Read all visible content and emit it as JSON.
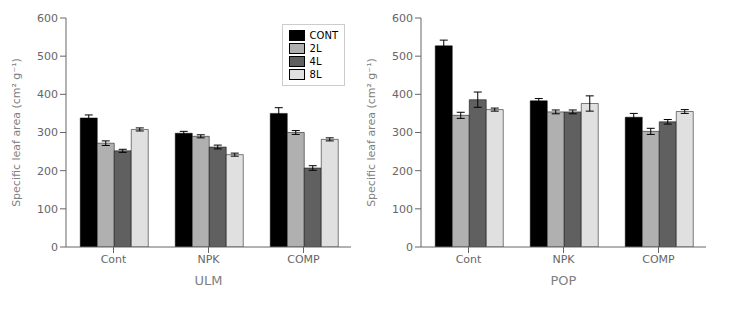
{
  "chart_data": [
    {
      "type": "bar",
      "xlabel": "ULM",
      "ylabel": "Specific leaf area (cm² g⁻¹)",
      "categories": [
        "Cont",
        "NPK",
        "COMP"
      ],
      "series": [
        {
          "name": "CONT",
          "color": "#000000",
          "values": [
            338,
            298,
            350
          ],
          "errors": [
            8,
            5,
            15
          ]
        },
        {
          "name": "2L",
          "color": "#b0b0b0",
          "values": [
            272,
            290,
            300
          ],
          "errors": [
            6,
            4,
            5
          ]
        },
        {
          "name": "4L",
          "color": "#606060",
          "values": [
            252,
            262,
            207
          ],
          "errors": [
            4,
            5,
            6
          ]
        },
        {
          "name": "8L",
          "color": "#e0e0e0",
          "values": [
            308,
            242,
            282
          ],
          "errors": [
            4,
            4,
            4
          ]
        }
      ],
      "ylim": [
        0,
        600
      ],
      "yticks": [
        0,
        100,
        200,
        300,
        400,
        500,
        600
      ],
      "grid": false,
      "legend": "upper right"
    },
    {
      "type": "bar",
      "xlabel": "POP",
      "ylabel": "Specific leaf area (cm² g⁻¹)",
      "categories": [
        "Cont",
        "NPK",
        "COMP"
      ],
      "series": [
        {
          "name": "CONT",
          "color": "#000000",
          "values": [
            527,
            383,
            340
          ],
          "errors": [
            15,
            6,
            10
          ]
        },
        {
          "name": "2L",
          "color": "#b0b0b0",
          "values": [
            345,
            354,
            303
          ],
          "errors": [
            8,
            5,
            8
          ]
        },
        {
          "name": "4L",
          "color": "#606060",
          "values": [
            386,
            354,
            328
          ],
          "errors": [
            20,
            5,
            6
          ]
        },
        {
          "name": "8L",
          "color": "#e0e0e0",
          "values": [
            360,
            376,
            355
          ],
          "errors": [
            4,
            20,
            5
          ]
        }
      ],
      "ylim": [
        0,
        600
      ],
      "yticks": [
        0,
        100,
        200,
        300,
        400,
        500,
        600
      ],
      "grid": false
    }
  ]
}
